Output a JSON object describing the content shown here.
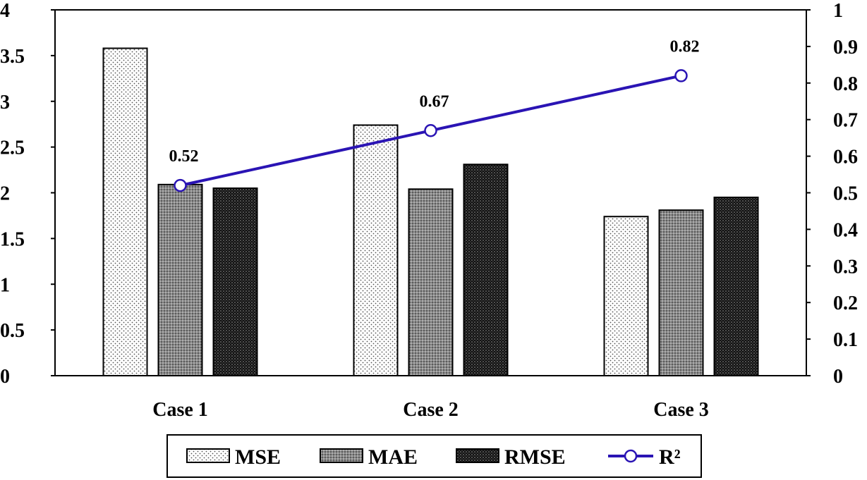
{
  "chart_data": {
    "type": "bar",
    "categories": [
      "Case 1",
      "Case 2",
      "Case 3"
    ],
    "series": [
      {
        "name": "MSE",
        "values": [
          3.58,
          2.74,
          1.74
        ],
        "pattern": "light-dots",
        "axis": "left"
      },
      {
        "name": "MAE",
        "values": [
          2.09,
          2.04,
          1.81
        ],
        "pattern": "grey-dots",
        "axis": "left"
      },
      {
        "name": "RMSE",
        "values": [
          2.05,
          2.31,
          1.95
        ],
        "pattern": "dark-dots",
        "axis": "left"
      }
    ],
    "line_series": {
      "name": "R²",
      "values": [
        0.52,
        0.67,
        0.82
      ],
      "labels": [
        "0.52",
        "0.67",
        "0.82"
      ],
      "axis": "right",
      "color": "#2a14b4",
      "marker": "hollow-circle"
    },
    "y_left": {
      "ylim": [
        0,
        4
      ],
      "ticks": [
        "0",
        "0.5",
        "1",
        "1.5",
        "2",
        "2.5",
        "3",
        "3.5",
        "4"
      ]
    },
    "y_right": {
      "ylim": [
        0,
        1
      ],
      "ticks": [
        "0",
        "0.1",
        "0.2",
        "0.3",
        "0.4",
        "0.5",
        "0.6",
        "0.7",
        "0.8",
        "0.9",
        "1"
      ]
    },
    "title": "",
    "xlabel": "",
    "ylabel": "",
    "grid": false,
    "legend_position": "bottom"
  }
}
